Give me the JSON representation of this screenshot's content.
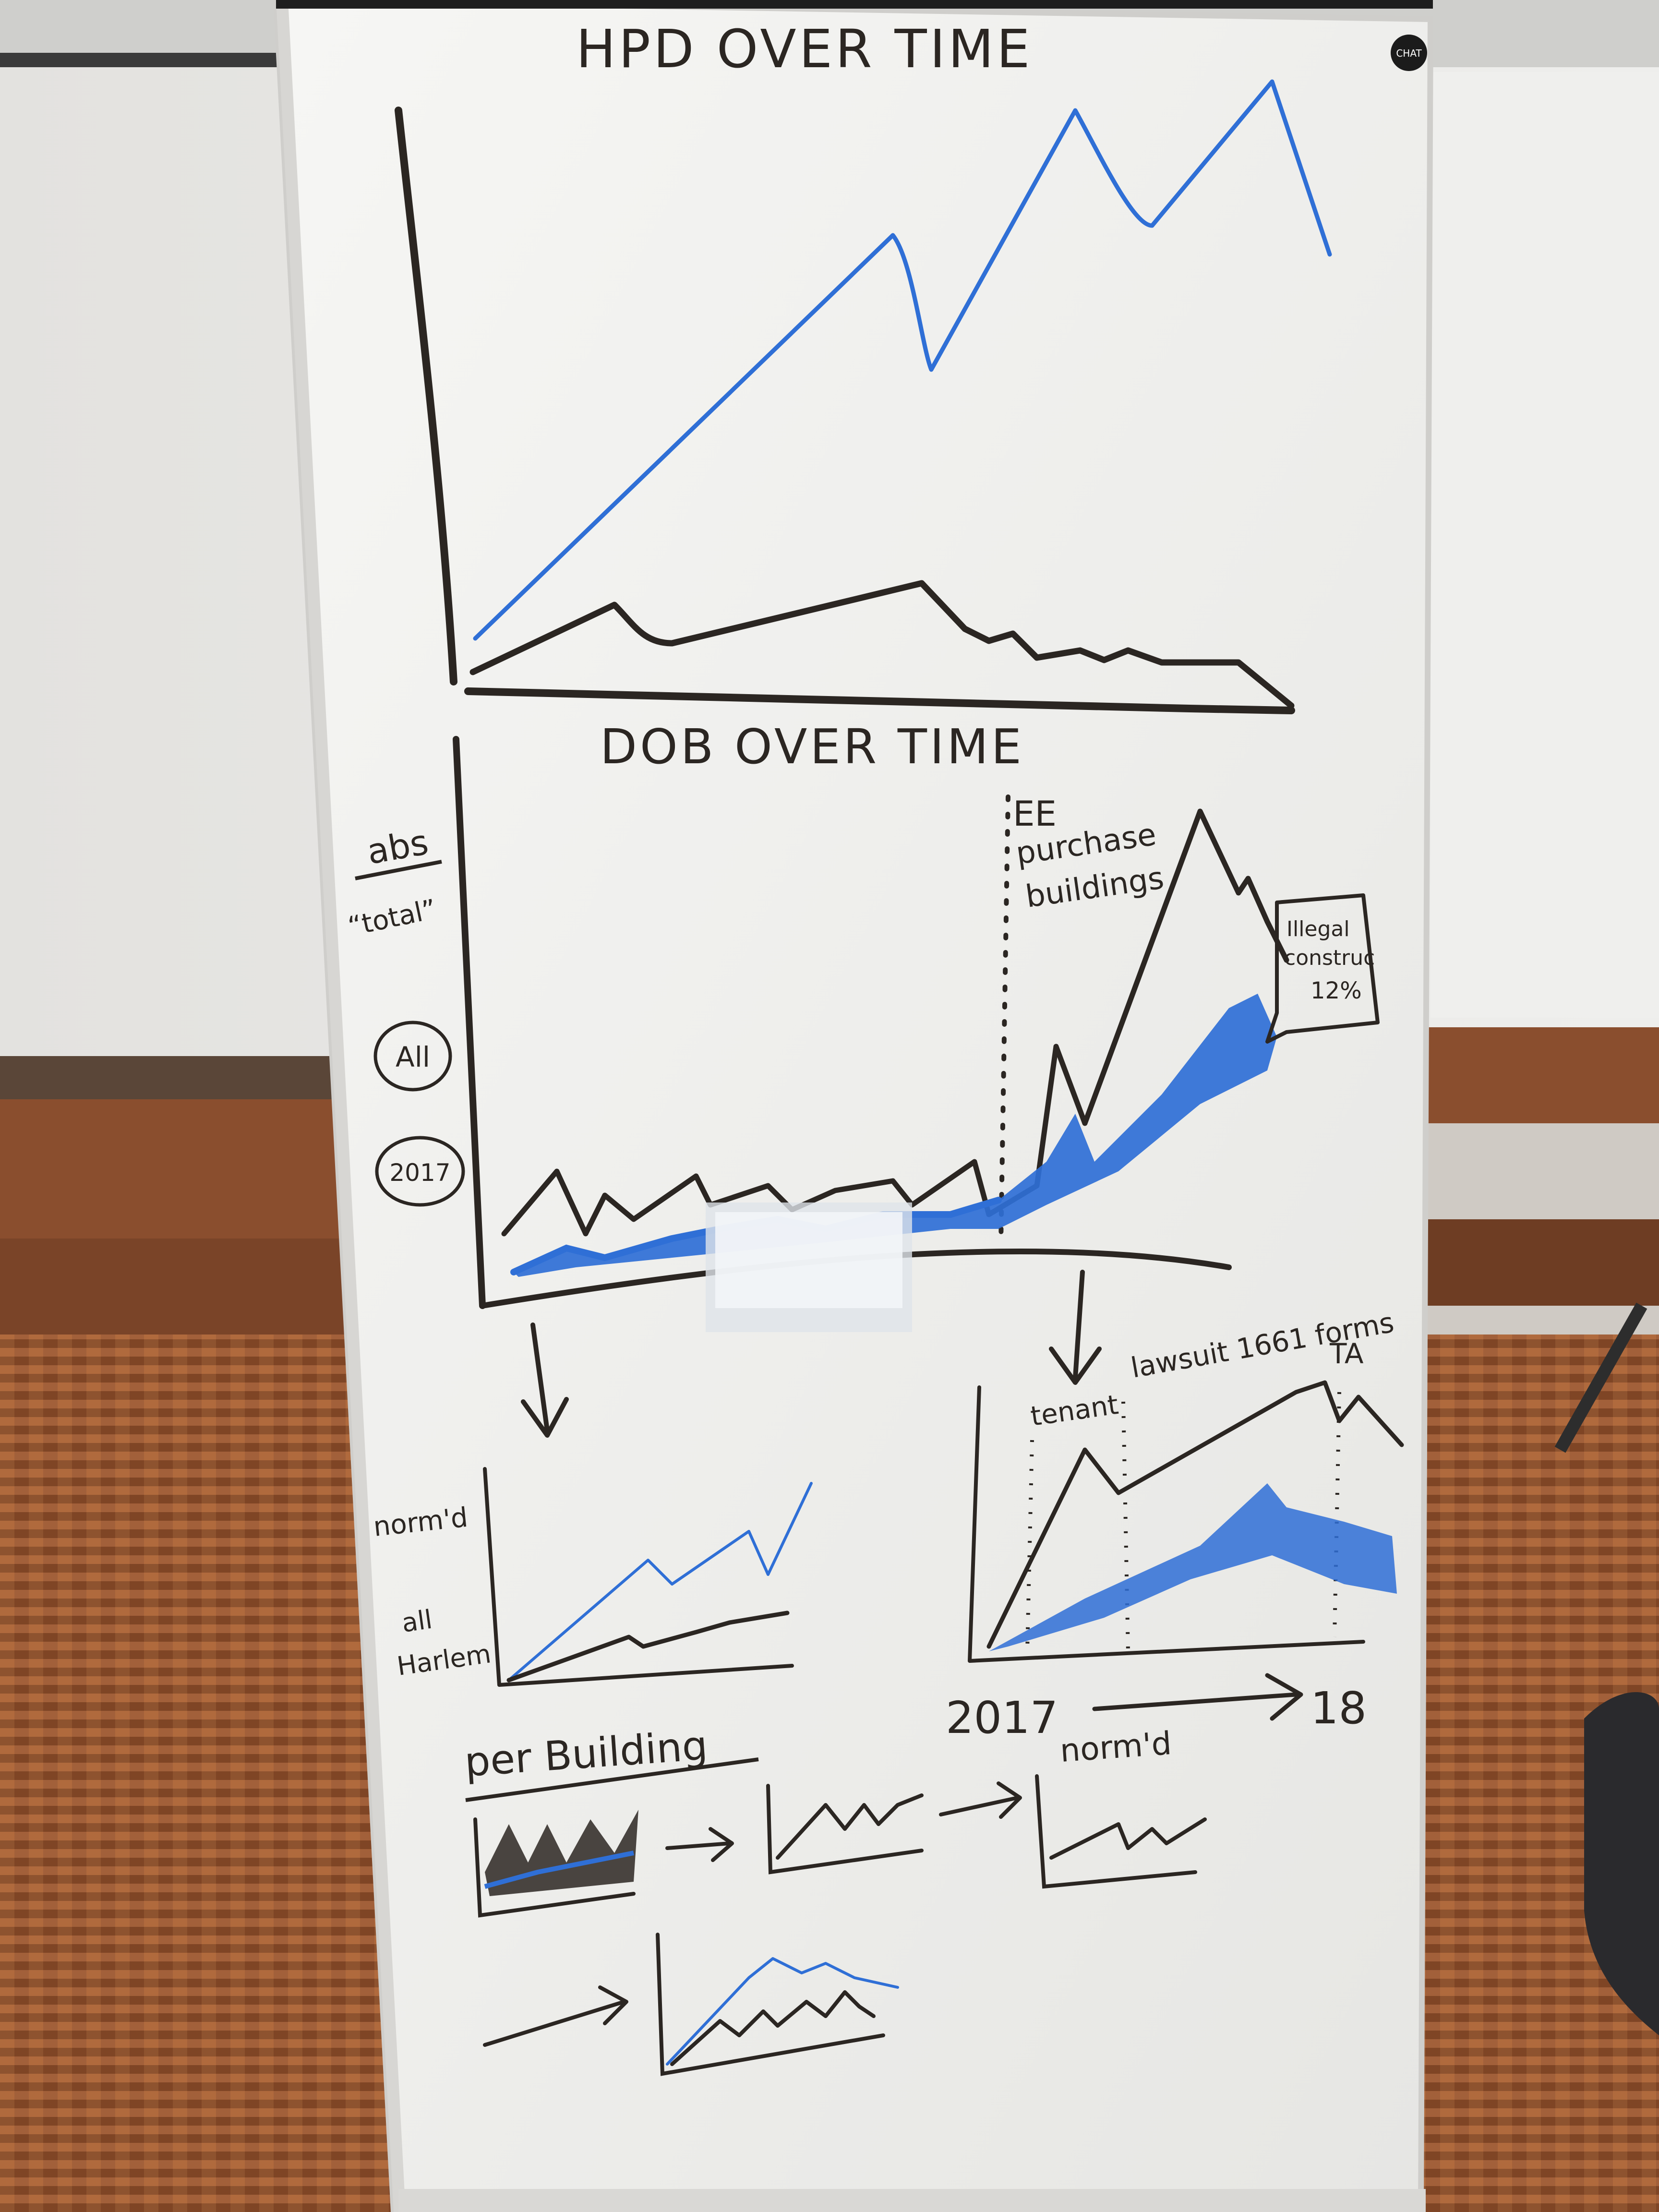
{
  "whiteboard": {
    "badge_text": "CHAT",
    "top_title": "HPD OVER TIME",
    "middle_title": "DOB OVER TIME",
    "side_labels": {
      "abs": "abs",
      "total": "“total”",
      "all": "All",
      "year": "2017"
    },
    "annotations": {
      "purchase_line1": "EE",
      "purchase_line2": "purchase",
      "purchase_line3": "buildings",
      "callout_line1": "Illegal",
      "callout_line2": "construc",
      "callout_line3": "12%",
      "tenant": "tenant",
      "lawsuit": "lawsuit 1661 forms",
      "ta": "TA",
      "year_start": "2017",
      "year_end": "18",
      "normd_left": "norm'd",
      "all_harlem_1": "all",
      "all_harlem_2": "Harlem",
      "per_building": "per Building",
      "normd_bottom": "norm'd"
    }
  },
  "colors": {
    "wall": "#e9e9e7",
    "board": "#f3f3f1",
    "board_edge": "#d7d6d3",
    "floor": "#9a5a33",
    "bench": "#8a4e2e",
    "marker_black": "#2b2622",
    "marker_blue": "#2f6fd6"
  }
}
